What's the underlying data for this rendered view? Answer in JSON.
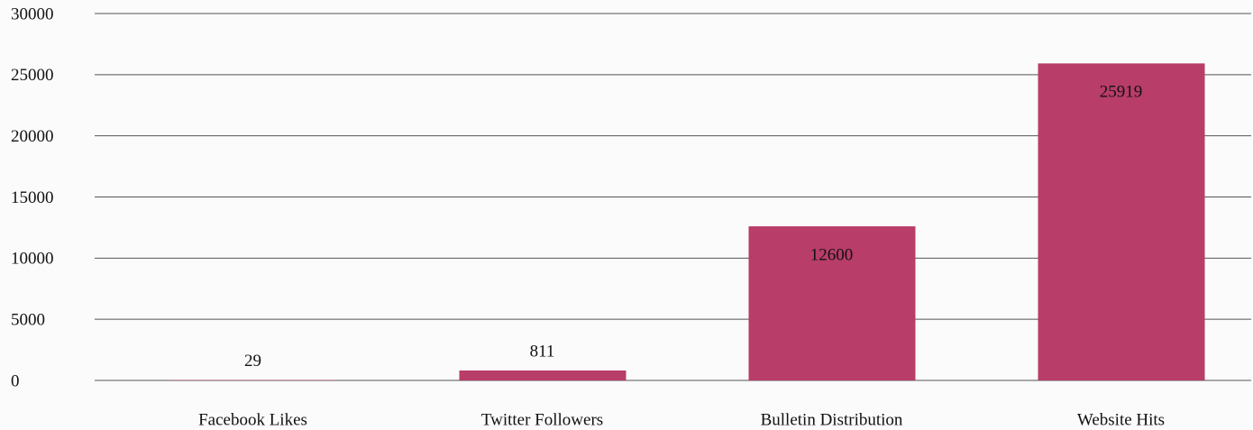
{
  "chart_data": {
    "type": "bar",
    "categories": [
      "Facebook Likes",
      "Twitter Followers",
      "Bulletin Distribution",
      "Website Hits"
    ],
    "values": [
      29,
      811,
      12600,
      25919
    ],
    "color": "#b83d68",
    "ylim": [
      0,
      30000
    ],
    "yticks": [
      0,
      5000,
      10000,
      15000,
      20000,
      25000,
      30000
    ],
    "grid": true
  }
}
